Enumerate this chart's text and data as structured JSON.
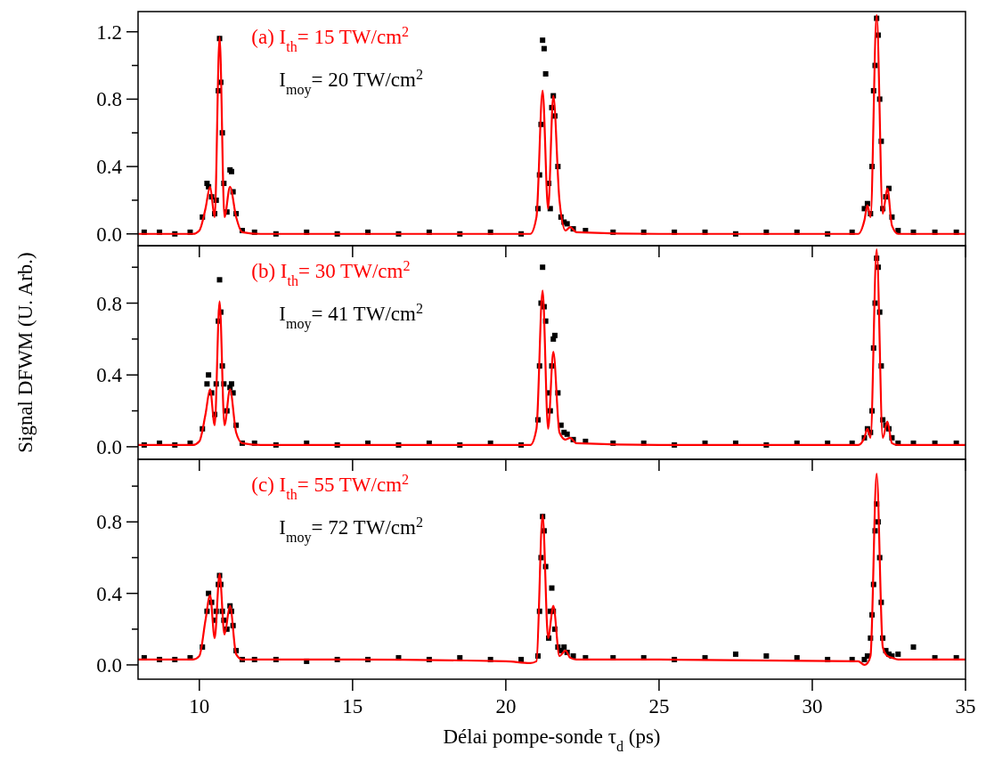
{
  "chart_data": [
    {
      "type": "scatter",
      "xlim": [
        8,
        35
      ],
      "ylim": [
        -0.07,
        1.32
      ],
      "xticks": [
        10,
        15,
        20,
        25,
        30,
        35
      ],
      "yticks": [
        {
          "value": 0,
          "label": "0.0"
        },
        {
          "value": 0.2,
          "label": null
        },
        {
          "value": 0.4,
          "label": "0.4"
        },
        {
          "value": 0.6,
          "label": null
        },
        {
          "value": 0.8,
          "label": "0.8"
        },
        {
          "value": 1.0,
          "label": null
        },
        {
          "value": 1.2,
          "label": "1.2"
        }
      ],
      "tick_labels": "y",
      "grid": false,
      "annotations": [
        "(a) I$_{th}$= 15 TW/cm$^{2}$",
        "I$_{moy}$= 20 TW/cm$^{2}$"
      ],
      "series": [
        {
          "marker": "square",
          "color": "#000000",
          "x": [
            8.2,
            8.7,
            9.2,
            9.7,
            10.1,
            10.25,
            10.3,
            10.4,
            10.5,
            10.55,
            10.62,
            10.66,
            10.7,
            10.75,
            10.8,
            10.9,
            11.0,
            11.05,
            11.1,
            11.2,
            11.4,
            11.8,
            12.5,
            13.5,
            14.5,
            15.5,
            16.5,
            17.5,
            18.5,
            19.5,
            20.5,
            21.05,
            21.1,
            21.15,
            21.2,
            21.25,
            21.3,
            21.4,
            21.45,
            21.5,
            21.55,
            21.6,
            21.7,
            21.8,
            21.9,
            22.0,
            22.2,
            22.6,
            23.5,
            24.5,
            25.5,
            26.5,
            27.5,
            28.5,
            29.5,
            30.5,
            31.3,
            31.7,
            31.8,
            31.9,
            31.95,
            32.0,
            32.05,
            32.1,
            32.15,
            32.2,
            32.25,
            32.3,
            32.4,
            32.5,
            32.6,
            32.8,
            33.3,
            34,
            34.7
          ],
          "values": [
            0.01,
            0.01,
            0,
            0.01,
            0.1,
            0.3,
            0.28,
            0.22,
            0.12,
            0.2,
            0.85,
            1.16,
            0.9,
            0.6,
            0.3,
            0.13,
            0.38,
            0.37,
            0.25,
            0.12,
            0.02,
            0.01,
            0,
            0.01,
            0,
            0.01,
            0,
            0.01,
            0,
            0.01,
            0,
            0.15,
            0.35,
            0.65,
            1.15,
            1.1,
            0.95,
            0.3,
            0.15,
            0.75,
            0.82,
            0.7,
            0.4,
            0.1,
            0.07,
            0.06,
            0.03,
            0.02,
            0.01,
            0.01,
            0.01,
            0.01,
            0,
            0.01,
            0.01,
            0,
            0.01,
            0.15,
            0.18,
            0.12,
            0.4,
            0.85,
            1.0,
            1.28,
            1.18,
            0.8,
            0.55,
            0.15,
            0.22,
            0.27,
            0.1,
            0.02,
            0.01,
            0.01,
            0.01
          ]
        },
        {
          "type": "line",
          "marker": "none",
          "line_style": "solid",
          "color": "#ff0000",
          "x": [
            8,
            9,
            9.8,
            10.0,
            10.2,
            10.35,
            10.5,
            10.66,
            10.82,
            11.0,
            11.2,
            11.4,
            12,
            15,
            20,
            20.8,
            21.0,
            21.2,
            21.38,
            21.55,
            21.75,
            21.95,
            22.1,
            22.3,
            25,
            31.5,
            31.7,
            31.8,
            31.9,
            32.1,
            32.3,
            32.45,
            32.6,
            32.8,
            35
          ],
          "values": [
            0,
            0,
            0,
            0.02,
            0.15,
            0.28,
            0.1,
            1.17,
            0.1,
            0.28,
            0.1,
            0.01,
            0,
            0,
            0,
            0,
            0.1,
            0.85,
            0.15,
            0.82,
            0.2,
            0.02,
            0.04,
            0.01,
            0,
            0,
            0.08,
            0.17,
            0.1,
            1.3,
            0.12,
            0.27,
            0.05,
            0,
            0
          ]
        }
      ]
    },
    {
      "type": "scatter",
      "xlim": [
        8,
        35
      ],
      "ylim": [
        -0.07,
        1.12
      ],
      "xticks": [
        10,
        15,
        20,
        25,
        30,
        35
      ],
      "yticks": [
        {
          "value": 0,
          "label": "0.0"
        },
        {
          "value": 0.2,
          "label": null
        },
        {
          "value": 0.4,
          "label": "0.4"
        },
        {
          "value": 0.6,
          "label": null
        },
        {
          "value": 0.8,
          "label": "0.8"
        },
        {
          "value": 1.0,
          "label": null
        }
      ],
      "tick_labels": "y",
      "grid": false,
      "ylabel": "Signal DFWM (U. Arb.)",
      "annotations": [
        "(b) I$_{th}$= 30 TW/cm$^{2}$",
        "I$_{moy}$= 41 TW/cm$^{2}$"
      ],
      "series": [
        {
          "marker": "square",
          "color": "#000000",
          "x": [
            8.2,
            8.7,
            9.2,
            9.7,
            10.1,
            10.25,
            10.3,
            10.4,
            10.5,
            10.55,
            10.62,
            10.66,
            10.7,
            10.75,
            10.8,
            10.9,
            11.0,
            11.05,
            11.1,
            11.2,
            11.4,
            11.8,
            12.5,
            13.5,
            14.5,
            15.5,
            16.5,
            17.5,
            18.5,
            19.5,
            20.5,
            21.05,
            21.1,
            21.15,
            21.2,
            21.25,
            21.3,
            21.4,
            21.45,
            21.5,
            21.55,
            21.6,
            21.7,
            21.8,
            21.9,
            22.0,
            22.2,
            22.6,
            23.5,
            24.5,
            25.5,
            26.5,
            27.5,
            28.5,
            29.5,
            30.5,
            31.3,
            31.7,
            31.8,
            31.9,
            31.95,
            32.0,
            32.05,
            32.1,
            32.15,
            32.2,
            32.25,
            32.3,
            32.4,
            32.5,
            32.6,
            32.8,
            33.3,
            34,
            34.7
          ],
          "values": [
            0.01,
            0.02,
            0.01,
            0.02,
            0.1,
            0.35,
            0.4,
            0.3,
            0.18,
            0.35,
            0.7,
            0.93,
            0.75,
            0.45,
            0.35,
            0.2,
            0.33,
            0.35,
            0.3,
            0.12,
            0.02,
            0.02,
            0.01,
            0.02,
            0.01,
            0.02,
            0.01,
            0.02,
            0.01,
            0.02,
            0.01,
            0.15,
            0.45,
            0.8,
            1.0,
            0.78,
            0.7,
            0.3,
            0.2,
            0.45,
            0.6,
            0.62,
            0.3,
            0.12,
            0.08,
            0.07,
            0.04,
            0.03,
            0.02,
            0.02,
            0.01,
            0.02,
            0.02,
            0.01,
            0.02,
            0.02,
            0.02,
            0.05,
            0.1,
            0.08,
            0.2,
            0.55,
            0.8,
            1.05,
            1.0,
            0.75,
            0.45,
            0.15,
            0.12,
            0.1,
            0.05,
            0.02,
            0.02,
            0.02,
            0.02
          ]
        },
        {
          "type": "line",
          "marker": "none",
          "line_style": "solid",
          "color": "#ff0000",
          "x": [
            8,
            9,
            9.8,
            10.0,
            10.2,
            10.35,
            10.5,
            10.66,
            10.82,
            11.0,
            11.2,
            11.4,
            12,
            15,
            20,
            20.8,
            21.0,
            21.2,
            21.38,
            21.55,
            21.75,
            21.95,
            22.1,
            22.3,
            25,
            31.5,
            31.7,
            31.8,
            31.9,
            32.1,
            32.3,
            32.45,
            32.6,
            32.8,
            35
          ],
          "values": [
            0.01,
            0.01,
            0.01,
            0.03,
            0.18,
            0.32,
            0.12,
            0.81,
            0.12,
            0.32,
            0.08,
            0.02,
            0.01,
            0.01,
            0.01,
            0.01,
            0.1,
            0.87,
            0.1,
            0.53,
            0.08,
            0.04,
            0.05,
            0.02,
            0.01,
            0.01,
            0.05,
            0.1,
            0.05,
            1.1,
            0.05,
            0.14,
            0.02,
            0.01,
            0.01
          ]
        }
      ]
    },
    {
      "type": "scatter",
      "xlim": [
        8,
        35
      ],
      "ylim": [
        -0.08,
        1.15
      ],
      "xticks": [
        10,
        15,
        20,
        25,
        30,
        35
      ],
      "yticks": [
        {
          "value": 0,
          "label": "0.0"
        },
        {
          "value": 0.2,
          "label": null
        },
        {
          "value": 0.4,
          "label": "0.4"
        },
        {
          "value": 0.6,
          "label": null
        },
        {
          "value": 0.8,
          "label": "0.8"
        },
        {
          "value": 1.0,
          "label": null
        }
      ],
      "grid": false,
      "xlabel": "Délai pompe-sonde τ$_{d}$ (ps)",
      "annotations": [
        "(c) I$_{th}$= 55 TW/cm$^{2}$",
        "I$_{moy}$= 72 TW/cm$^{2}$"
      ],
      "series": [
        {
          "marker": "square",
          "color": "#000000",
          "x": [
            8.2,
            8.7,
            9.2,
            9.7,
            10.1,
            10.25,
            10.3,
            10.4,
            10.5,
            10.55,
            10.62,
            10.66,
            10.7,
            10.75,
            10.8,
            10.9,
            11.0,
            11.05,
            11.1,
            11.2,
            11.4,
            11.8,
            12.5,
            13.5,
            14.5,
            15.5,
            16.5,
            17.5,
            18.5,
            19.5,
            20.5,
            21.05,
            21.1,
            21.15,
            21.2,
            21.25,
            21.3,
            21.4,
            21.45,
            21.5,
            21.55,
            21.6,
            21.7,
            21.8,
            21.9,
            22.0,
            22.2,
            22.6,
            23.5,
            24.5,
            25.5,
            26.5,
            27.5,
            28.5,
            29.5,
            30.5,
            31.3,
            31.7,
            31.8,
            31.9,
            31.95,
            32.0,
            32.05,
            32.1,
            32.15,
            32.2,
            32.25,
            32.3,
            32.4,
            32.5,
            32.6,
            32.8,
            33.3,
            34,
            34.7
          ],
          "values": [
            0.04,
            0.03,
            0.03,
            0.04,
            0.1,
            0.3,
            0.4,
            0.35,
            0.25,
            0.3,
            0.45,
            0.5,
            0.45,
            0.3,
            0.25,
            0.2,
            0.33,
            0.3,
            0.22,
            0.08,
            0.03,
            0.03,
            0.03,
            0.02,
            0.03,
            0.03,
            0.04,
            0.03,
            0.04,
            0.03,
            0.03,
            0.05,
            0.3,
            0.6,
            0.83,
            0.75,
            0.55,
            0.15,
            0.3,
            0.43,
            0.3,
            0.2,
            0.1,
            0.08,
            0.1,
            0.07,
            0.05,
            0.04,
            0.04,
            0.04,
            0.03,
            0.04,
            0.06,
            0.05,
            0.04,
            0.03,
            0.03,
            0.03,
            0.05,
            0.15,
            0.28,
            0.45,
            0.75,
            0.9,
            0.8,
            0.6,
            0.35,
            0.15,
            0.08,
            0.06,
            0.05,
            0.06,
            0.1,
            0.04,
            0.04
          ]
        },
        {
          "type": "line",
          "marker": "none",
          "line_style": "solid",
          "color": "#ff0000",
          "x": [
            8,
            9,
            9.8,
            10.0,
            10.2,
            10.35,
            10.5,
            10.66,
            10.82,
            11.0,
            11.2,
            11.4,
            12,
            15,
            20,
            20.8,
            21.0,
            21.2,
            21.38,
            21.55,
            21.75,
            21.95,
            22.1,
            22.3,
            25,
            31.5,
            31.7,
            31.8,
            31.9,
            32.1,
            32.3,
            32.45,
            32.6,
            32.8,
            35
          ],
          "values": [
            0.03,
            0.03,
            0.03,
            0.05,
            0.25,
            0.39,
            0.15,
            0.51,
            0.17,
            0.33,
            0.06,
            0.03,
            0.03,
            0.03,
            0.02,
            0.01,
            0.02,
            0.84,
            0.15,
            0.33,
            0.05,
            0.08,
            0.04,
            0.03,
            0.03,
            0.02,
            0.0,
            0.01,
            0.05,
            1.07,
            0.1,
            0.05,
            0.04,
            0.03,
            0.03
          ]
        }
      ]
    }
  ]
}
